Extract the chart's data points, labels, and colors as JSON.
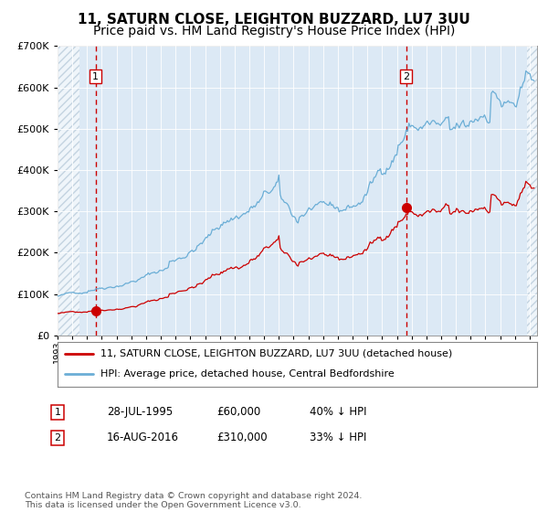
{
  "title": "11, SATURN CLOSE, LEIGHTON BUZZARD, LU7 3UU",
  "subtitle": "Price paid vs. HM Land Registry's House Price Index (HPI)",
  "hpi_label": "HPI: Average price, detached house, Central Bedfordshire",
  "price_label": "11, SATURN CLOSE, LEIGHTON BUZZARD, LU7 3UU (detached house)",
  "sale1_date": "28-JUL-1995",
  "sale1_price": 60000,
  "sale1_note": "40% ↓ HPI",
  "sale2_date": "16-AUG-2016",
  "sale2_price": 310000,
  "sale2_note": "33% ↓ HPI",
  "sale1_x": 1995.57,
  "sale2_x": 2016.62,
  "ylim": [
    0,
    700000
  ],
  "xlim_start": 1993.0,
  "xlim_end": 2025.5,
  "hatch_left_end": 1994.5,
  "hatch_right_start": 2024.83,
  "background_color": "#dce9f5",
  "grid_color": "#ffffff",
  "hpi_line_color": "#6baed6",
  "price_line_color": "#cc0000",
  "vline_color": "#cc0000",
  "title_fontsize": 11,
  "subtitle_fontsize": 10,
  "footnote": "Contains HM Land Registry data © Crown copyright and database right 2024.\nThis data is licensed under the Open Government Licence v3.0."
}
